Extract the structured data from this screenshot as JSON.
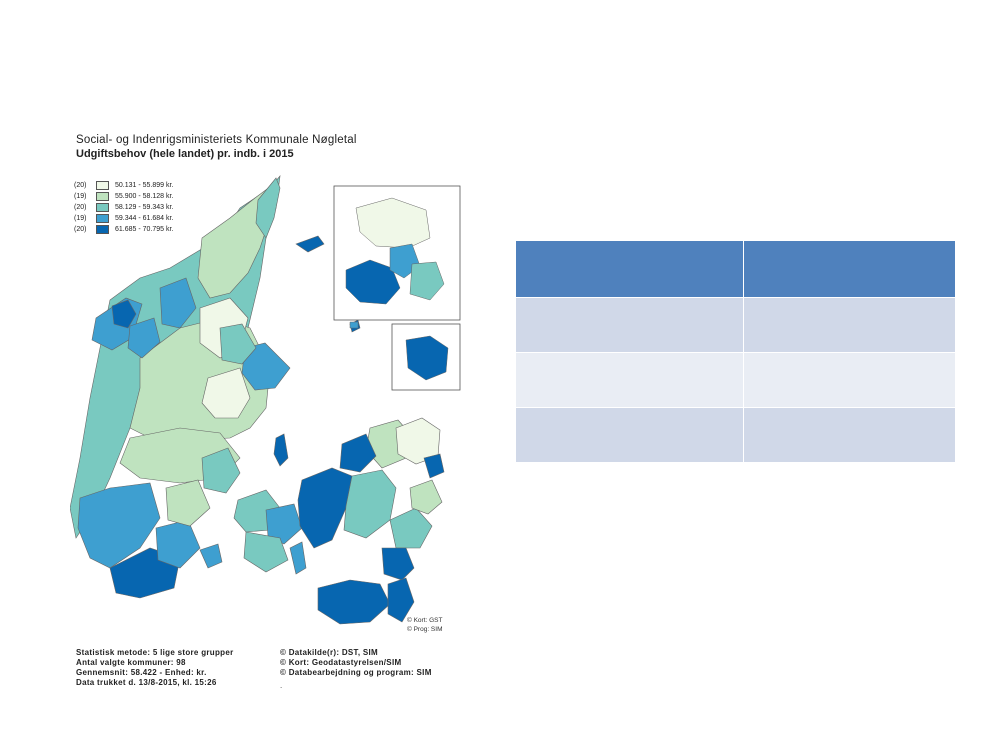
{
  "map": {
    "organization": "Social- og Indenrigsministeriets Kommunale Nøgletal",
    "title": "Udgiftsbehov (hele landet) pr. indb. i 2015",
    "legend": [
      {
        "count": "(20)",
        "range": "50.131 -  55.899 kr.",
        "color": "#f0f8e8"
      },
      {
        "count": "(19)",
        "range": "55.900 -  58.128 kr.",
        "color": "#bfe3bf"
      },
      {
        "count": "(20)",
        "range": "58.129 -  59.343 kr.",
        "color": "#79c9c0"
      },
      {
        "count": "(19)",
        "range": "59.344 -  61.684 kr.",
        "color": "#3e9fd0"
      },
      {
        "count": "(20)",
        "range": "61.685 -  70.795 kr.",
        "color": "#0766b0"
      }
    ],
    "map_credit": "© Kort: GST",
    "program_credit": "© Prog: SIM",
    "footer_left": [
      "Statistisk metode: 5 lige store grupper",
      "Antal valgte kommuner: 98",
      "Gennemsnit: 58.422 - Enhed: kr.",
      "Data trukket d. 13/8-2015, kl. 15:26"
    ],
    "footer_right": [
      "© Datakilde(r): DST, SIM",
      "© Kort: Geodatastyrelsen/SIM",
      "© Databearbejdning og program: SIM"
    ],
    "footer_dot": "."
  },
  "table": {
    "header": [
      "",
      ""
    ],
    "rows": [
      [
        "",
        ""
      ],
      [
        "",
        ""
      ],
      [
        "",
        ""
      ]
    ]
  }
}
